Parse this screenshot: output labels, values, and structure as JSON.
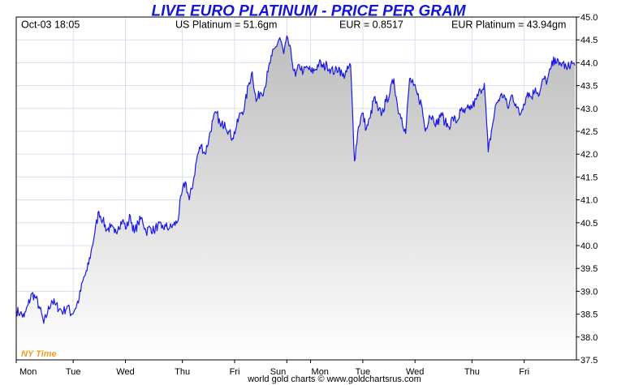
{
  "header": {
    "date_time": "Oct-03  18:05",
    "us_platinum": "US Platinum = 51.6gm",
    "eur_rate": "EUR = 0.8517",
    "eur_platinum": "EUR Platinum = 43.94gm"
  },
  "footer": {
    "credit": "world gold charts © www.goldchartsrus.com",
    "timezone_label": "NY Time"
  },
  "colors": {
    "line": "#1a1ae6",
    "title": "#1515d6",
    "grid": "#dcdcf2",
    "fill_top": "#bdbdbd",
    "fill_bottom": "#ffffff",
    "timezone": "#f0a020"
  },
  "chart_data": {
    "type": "area",
    "title": "LIVE EURO PLATINUM - PRICE PER GRAM",
    "xlabel": "",
    "ylabel": "",
    "ylim": [
      37.5,
      45.0
    ],
    "y_ticks": [
      "37.5",
      "38.0",
      "38.5",
      "39.0",
      "39.5",
      "40.0",
      "40.5",
      "41.0",
      "41.5",
      "42.0",
      "42.5",
      "43.0",
      "43.5",
      "44.0",
      "44.5",
      "45.0"
    ],
    "x_ticks": [
      "Mon",
      "Tue",
      "Wed",
      "Thu",
      "Fri",
      "Sun",
      "Mon",
      "Tue",
      "Wed",
      "Thu",
      "Fri"
    ],
    "grid": true,
    "y_axis_position": "right",
    "series": [
      {
        "values": [
          38.58,
          38.52,
          38.44,
          38.7,
          38.95,
          38.85,
          38.62,
          38.3,
          38.55,
          38.8,
          38.7,
          38.62,
          38.55,
          38.68,
          38.5,
          38.62,
          38.85,
          39.25,
          39.45,
          39.85,
          40.3,
          40.75,
          40.55,
          40.35,
          40.4,
          40.28,
          40.42,
          40.55,
          40.38,
          40.65,
          40.28,
          40.5,
          40.6,
          40.3,
          40.4,
          40.32,
          40.45,
          40.38,
          40.42,
          40.38,
          40.45,
          40.52,
          41.1,
          41.4,
          41.0,
          41.4,
          41.95,
          42.2,
          42.0,
          42.35,
          42.75,
          42.9,
          42.6,
          42.7,
          42.5,
          42.35,
          42.6,
          42.9,
          43.0,
          43.5,
          43.8,
          43.15,
          43.35,
          43.4,
          43.8,
          44.15,
          44.35,
          44.55,
          44.2,
          44.55,
          44.1,
          43.7,
          43.95,
          43.8,
          43.9,
          43.8,
          43.85,
          44.0,
          43.9,
          43.95,
          43.85,
          43.8,
          43.9,
          43.7,
          43.8,
          43.95,
          41.85,
          42.6,
          42.9,
          42.55,
          42.8,
          43.25,
          42.95,
          42.9,
          43.15,
          43.35,
          43.65,
          43.0,
          42.8,
          42.45,
          43.65,
          43.5,
          43.3,
          43.1,
          42.5,
          42.85,
          42.8,
          42.65,
          42.9,
          42.7,
          42.6,
          42.8,
          42.7,
          42.95,
          42.9,
          43.0,
          43.05,
          43.2,
          43.4,
          43.55,
          42.05,
          42.6,
          43.1,
          43.25,
          43.3,
          43.0,
          43.3,
          43.1,
          42.85,
          43.1,
          43.35,
          43.25,
          43.45,
          43.3,
          43.65,
          43.6,
          43.9,
          44.1,
          43.95,
          44.0,
          43.85,
          44.0,
          43.94
        ]
      }
    ]
  }
}
